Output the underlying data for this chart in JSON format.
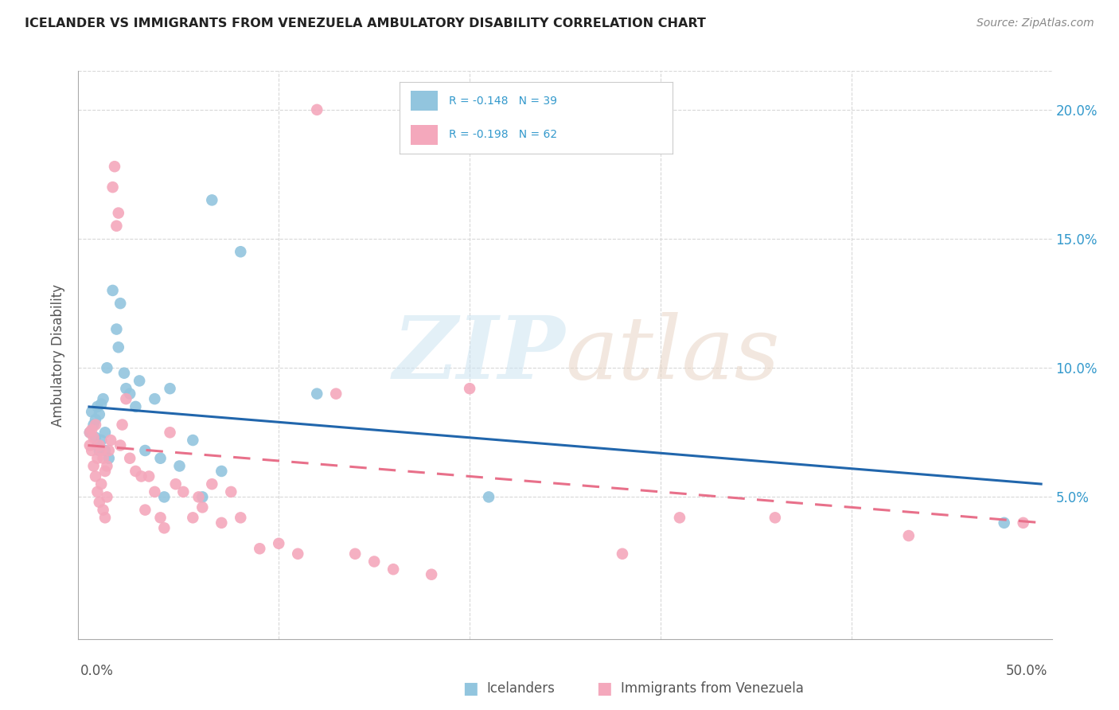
{
  "title": "ICELANDER VS IMMIGRANTS FROM VENEZUELA AMBULATORY DISABILITY CORRELATION CHART",
  "source": "Source: ZipAtlas.com",
  "ylabel": "Ambulatory Disability",
  "legend_icelanders": "Icelanders",
  "legend_venezuela": "Immigrants from Venezuela",
  "r_icelanders": -0.148,
  "n_icelanders": 39,
  "r_venezuela": -0.198,
  "n_venezuela": 62,
  "icelanders_color": "#92c5de",
  "venezuela_color": "#f4a8bc",
  "icelanders_line_color": "#2166ac",
  "venezuela_line_color": "#e8708a",
  "icelanders_x": [
    0.001,
    0.002,
    0.003,
    0.004,
    0.004,
    0.005,
    0.005,
    0.006,
    0.006,
    0.007,
    0.007,
    0.008,
    0.009,
    0.009,
    0.01,
    0.011,
    0.013,
    0.015,
    0.016,
    0.017,
    0.019,
    0.02,
    0.022,
    0.025,
    0.027,
    0.03,
    0.035,
    0.038,
    0.04,
    0.043,
    0.048,
    0.055,
    0.06,
    0.065,
    0.07,
    0.08,
    0.12,
    0.21,
    0.48
  ],
  "icelanders_y": [
    0.075,
    0.083,
    0.078,
    0.08,
    0.073,
    0.085,
    0.07,
    0.082,
    0.068,
    0.086,
    0.072,
    0.088,
    0.075,
    0.068,
    0.1,
    0.065,
    0.13,
    0.115,
    0.108,
    0.125,
    0.098,
    0.092,
    0.09,
    0.085,
    0.095,
    0.068,
    0.088,
    0.065,
    0.05,
    0.092,
    0.062,
    0.072,
    0.05,
    0.165,
    0.06,
    0.145,
    0.09,
    0.05,
    0.04
  ],
  "venezuela_x": [
    0.001,
    0.001,
    0.002,
    0.002,
    0.003,
    0.003,
    0.004,
    0.004,
    0.005,
    0.005,
    0.006,
    0.006,
    0.007,
    0.007,
    0.008,
    0.008,
    0.009,
    0.009,
    0.01,
    0.01,
    0.011,
    0.012,
    0.013,
    0.014,
    0.015,
    0.016,
    0.017,
    0.018,
    0.02,
    0.022,
    0.025,
    0.028,
    0.03,
    0.032,
    0.035,
    0.038,
    0.04,
    0.043,
    0.046,
    0.05,
    0.055,
    0.058,
    0.06,
    0.065,
    0.07,
    0.075,
    0.08,
    0.09,
    0.1,
    0.11,
    0.12,
    0.13,
    0.14,
    0.15,
    0.16,
    0.18,
    0.2,
    0.28,
    0.31,
    0.36,
    0.43,
    0.49
  ],
  "venezuela_y": [
    0.075,
    0.07,
    0.076,
    0.068,
    0.073,
    0.062,
    0.078,
    0.058,
    0.065,
    0.052,
    0.07,
    0.048,
    0.068,
    0.055,
    0.065,
    0.045,
    0.06,
    0.042,
    0.062,
    0.05,
    0.068,
    0.072,
    0.17,
    0.178,
    0.155,
    0.16,
    0.07,
    0.078,
    0.088,
    0.065,
    0.06,
    0.058,
    0.045,
    0.058,
    0.052,
    0.042,
    0.038,
    0.075,
    0.055,
    0.052,
    0.042,
    0.05,
    0.046,
    0.055,
    0.04,
    0.052,
    0.042,
    0.03,
    0.032,
    0.028,
    0.2,
    0.09,
    0.028,
    0.025,
    0.022,
    0.02,
    0.092,
    0.028,
    0.042,
    0.042,
    0.035,
    0.04
  ],
  "ylim_min": -0.005,
  "ylim_max": 0.215,
  "xlim_min": -0.005,
  "xlim_max": 0.505,
  "ytick_vals": [
    0.05,
    0.1,
    0.15,
    0.2
  ],
  "ytick_labels": [
    "5.0%",
    "10.0%",
    "15.0%",
    "20.0%"
  ],
  "xtick_vals": [
    0.0,
    0.1,
    0.2,
    0.3,
    0.4,
    0.5
  ],
  "grid_color": "#d8d8d8",
  "trend_line_start": 0.0,
  "trend_line_end": 0.5,
  "icelanders_trend_y0": 0.085,
  "icelanders_trend_y1": 0.055,
  "venezuela_trend_y0": 0.07,
  "venezuela_trend_y1": 0.04
}
